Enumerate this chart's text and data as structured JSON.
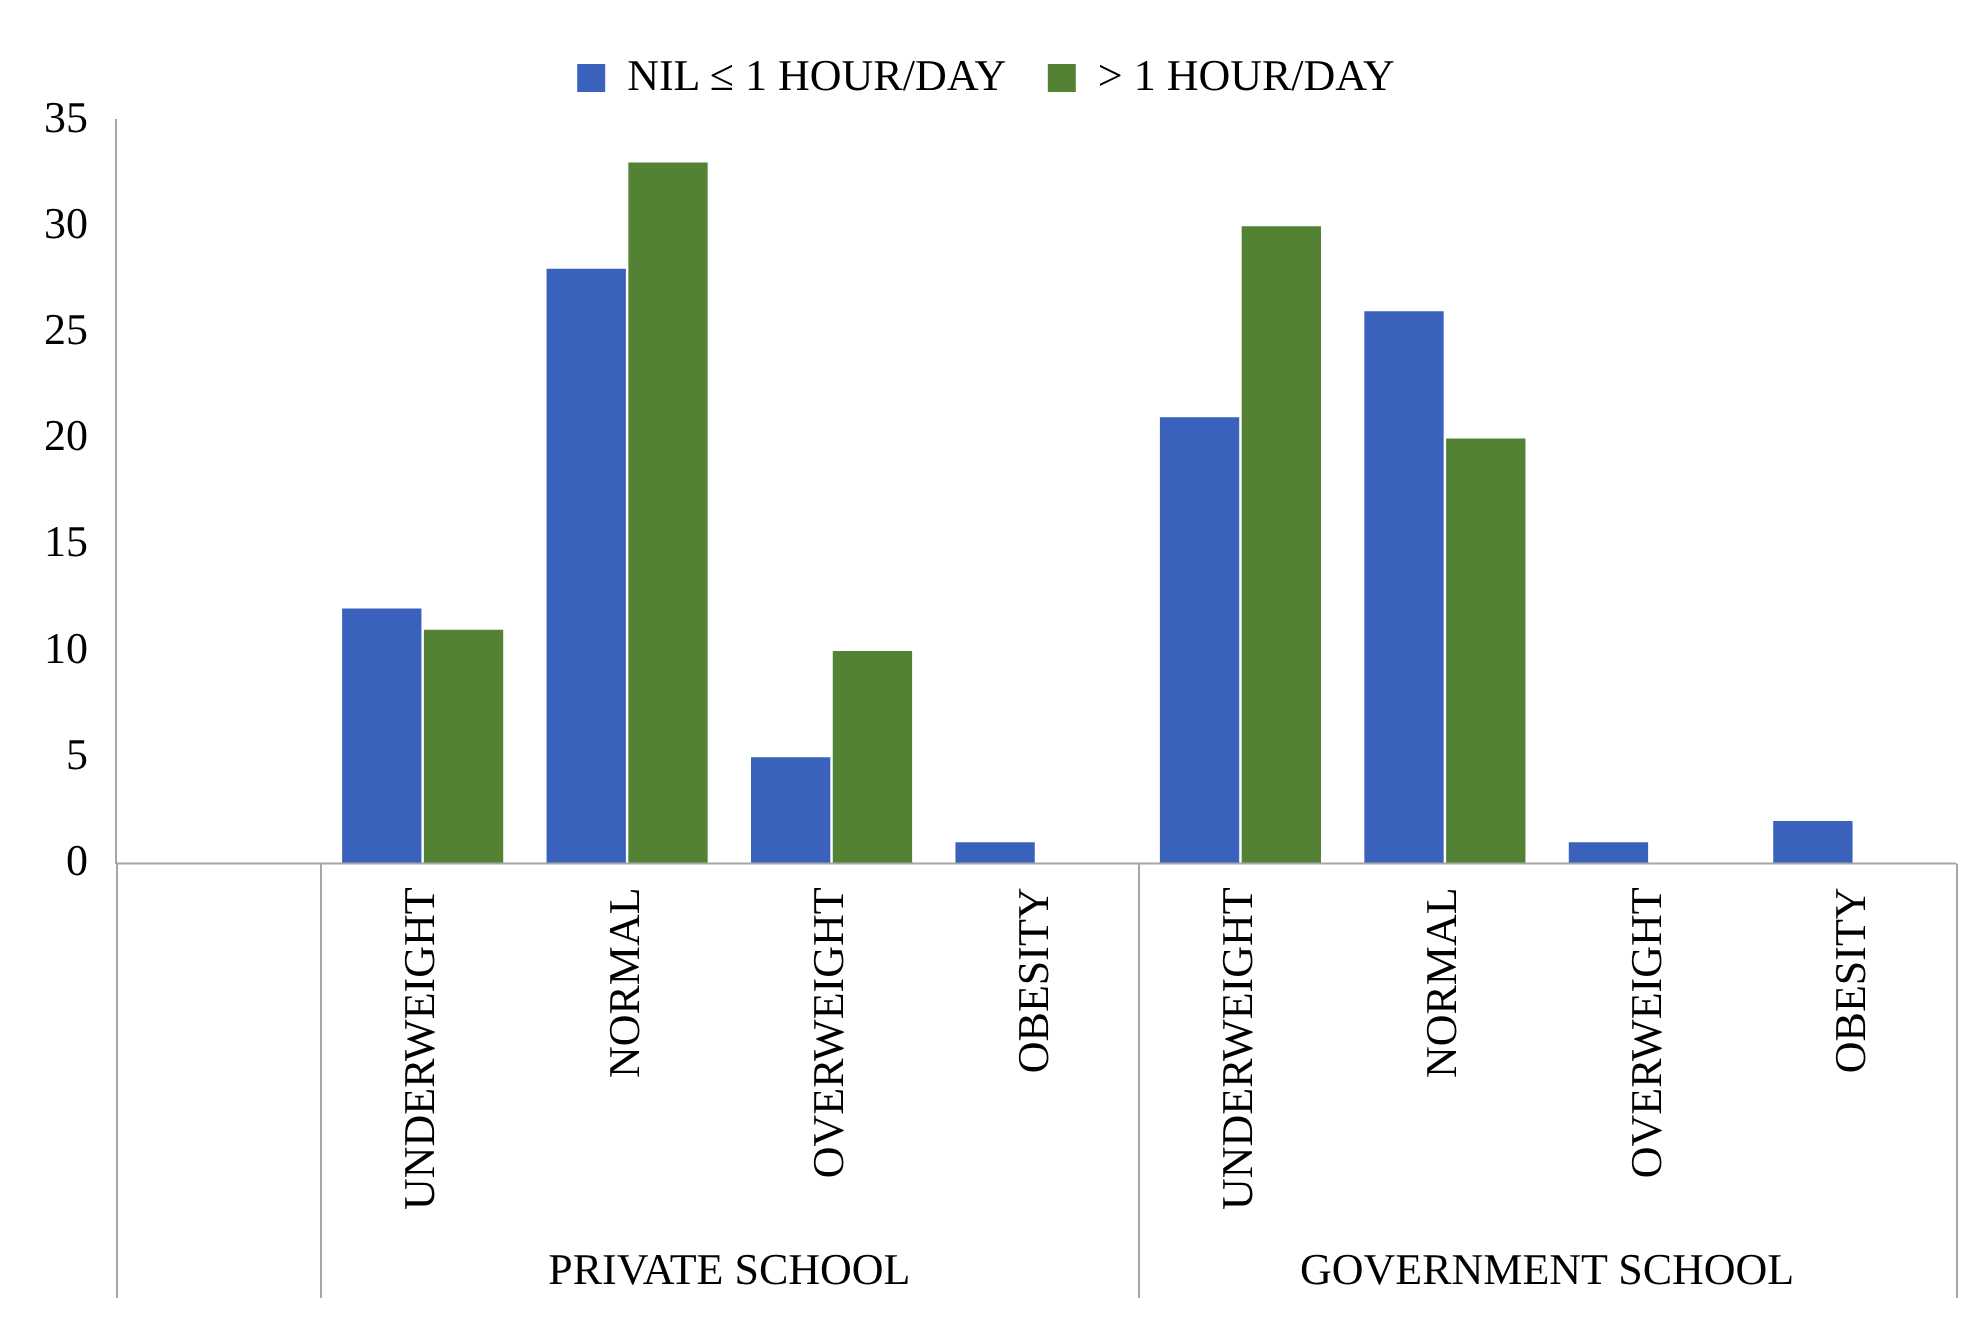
{
  "chart_data": {
    "type": "bar",
    "categories": [
      null,
      "UNDERWEIGHT",
      "NORMAL",
      "OVERWEIGHT",
      "OBESITY",
      "UNDERWEIGHT",
      "NORMAL",
      "OVERWEIGHT",
      "OBESITY"
    ],
    "series": [
      {
        "name": "NIL ≤ 1 HOUR/DAY",
        "color": "#3a62bd",
        "values": [
          null,
          12,
          28,
          5,
          1,
          21,
          26,
          1,
          2
        ]
      },
      {
        "name": "> 1 HOUR/DAY",
        "color": "#548235",
        "values": [
          null,
          11,
          33,
          10,
          0,
          30,
          20,
          0,
          0
        ]
      }
    ],
    "ylim": [
      0,
      35
    ],
    "yticks": [
      0,
      5,
      10,
      15,
      20,
      25,
      30,
      35
    ],
    "grid": false,
    "legend": "top",
    "annotations": [
      "PRIVATE SCHOOL",
      "GOVERNMENT SCHOOL"
    ]
  }
}
